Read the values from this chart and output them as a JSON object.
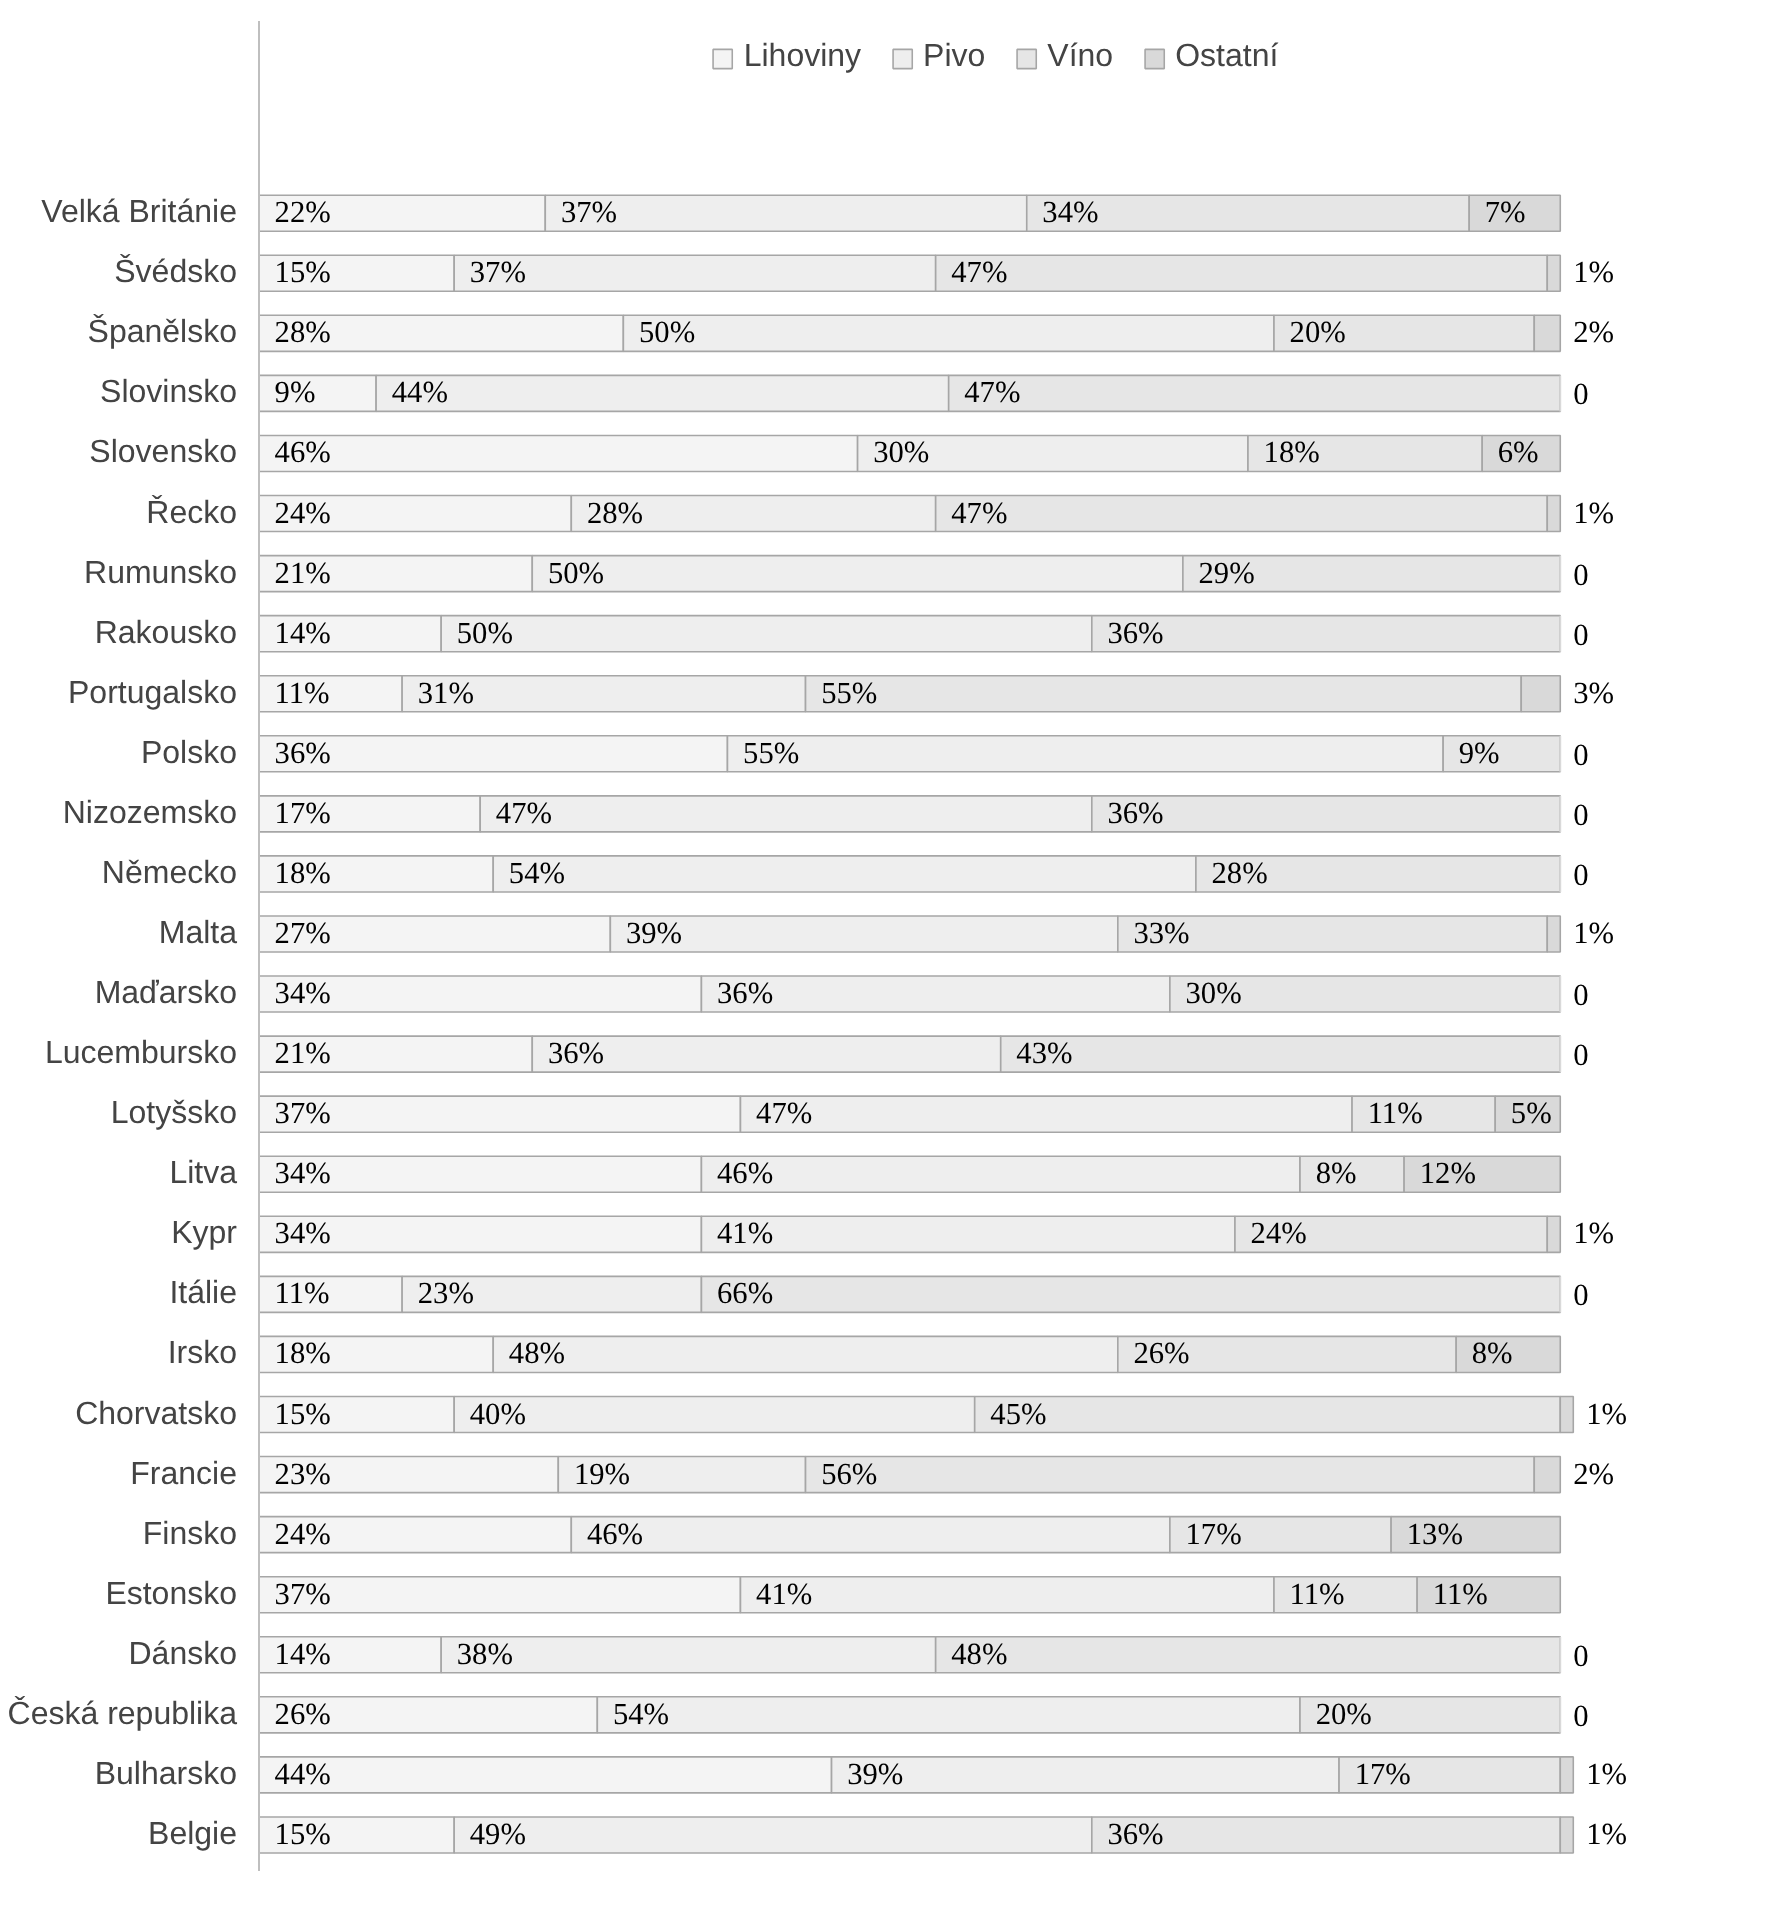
{
  "chart_data": {
    "type": "bar",
    "orientation": "horizontal",
    "stacked": true,
    "legend": "top",
    "grid": false,
    "categories": [
      "Velká Británie",
      "Švédsko",
      "Španělsko",
      "Slovinsko",
      "Slovensko",
      "Řecko",
      "Rumunsko",
      "Rakousko",
      "Portugalsko",
      "Polsko",
      "Nizozemsko",
      "Německo",
      "Malta",
      "Maďarsko",
      "Lucembursko",
      "Lotyšsko",
      "Litva",
      "Kypr",
      "Itálie",
      "Irsko",
      "Chorvatsko",
      "Francie",
      "Finsko",
      "Estonsko",
      "Dánsko",
      "Česká republika",
      "Bulharsko",
      "Belgie"
    ],
    "series": [
      {
        "name": "Lihoviny",
        "color": "#f4f4f4",
        "values": [
          22,
          15,
          28,
          9,
          46,
          24,
          21,
          14,
          11,
          36,
          17,
          18,
          27,
          34,
          21,
          37,
          34,
          34,
          11,
          18,
          15,
          23,
          24,
          37,
          14,
          26,
          44,
          15
        ],
        "value_labels": [
          "22%",
          "15%",
          "28%",
          "9%",
          "46%",
          "24%",
          "21%",
          "14%",
          "11%",
          "36%",
          "17%",
          "18%",
          "27%",
          "34%",
          "21%",
          "37%",
          "34%",
          "34%",
          "11%",
          "18%",
          "15%",
          "23%",
          "24%",
          "37%",
          "14%",
          "26%",
          "44%",
          "15%"
        ]
      },
      {
        "name": "Pivo",
        "color": "#eeeeee",
        "values": [
          37,
          37,
          50,
          44,
          30,
          28,
          50,
          50,
          31,
          55,
          47,
          54,
          39,
          36,
          36,
          47,
          46,
          41,
          23,
          48,
          40,
          19,
          46,
          41,
          38,
          54,
          39,
          49
        ],
        "value_labels": [
          "37%",
          "37%",
          "50%",
          "44%",
          "30%",
          "28%",
          "50%",
          "50%",
          "31%",
          "55%",
          "47%",
          "54%",
          "39%",
          "36%",
          "36%",
          "47%",
          "46%",
          "41%",
          "23%",
          "48%",
          "40%",
          "19%",
          "46%",
          "41%",
          "38%",
          "54%",
          "39%",
          "49%"
        ]
      },
      {
        "name": "Víno",
        "color": "#e6e6e6",
        "values": [
          34,
          47,
          20,
          47,
          18,
          47,
          29,
          36,
          55,
          9,
          36,
          28,
          33,
          30,
          43,
          11,
          8,
          24,
          66,
          26,
          45,
          56,
          17,
          11,
          48,
          20,
          17,
          36
        ],
        "value_labels": [
          "34%",
          "47%",
          "20%",
          "47%",
          "18%",
          "47%",
          "29%",
          "36%",
          "55%",
          "9%",
          "36%",
          "28%",
          "33%",
          "30%",
          "43%",
          "11%",
          "8%",
          "24%",
          "66%",
          "26%",
          "45%",
          "56%",
          "17%",
          "11%",
          "48%",
          "20%",
          "17%",
          "36%"
        ]
      },
      {
        "name": "Ostatní",
        "color": "#d9d9d9",
        "values": [
          7,
          1,
          2,
          0,
          6,
          1,
          0,
          0,
          3,
          0,
          0,
          0,
          1,
          0,
          0,
          5,
          12,
          1,
          0,
          8,
          1,
          2,
          13,
          11,
          0,
          0,
          1,
          1
        ],
        "value_labels": [
          "7%",
          "1%",
          "2%",
          "0",
          "6%",
          "1%",
          "0",
          "0",
          "3%",
          "0",
          "0",
          "0",
          "1%",
          "0",
          "0",
          "5%",
          "12%",
          "1%",
          "0",
          "8%",
          "1%",
          "2%",
          "13%",
          "11%",
          "0",
          "0",
          "1%",
          "1%"
        ]
      }
    ]
  }
}
